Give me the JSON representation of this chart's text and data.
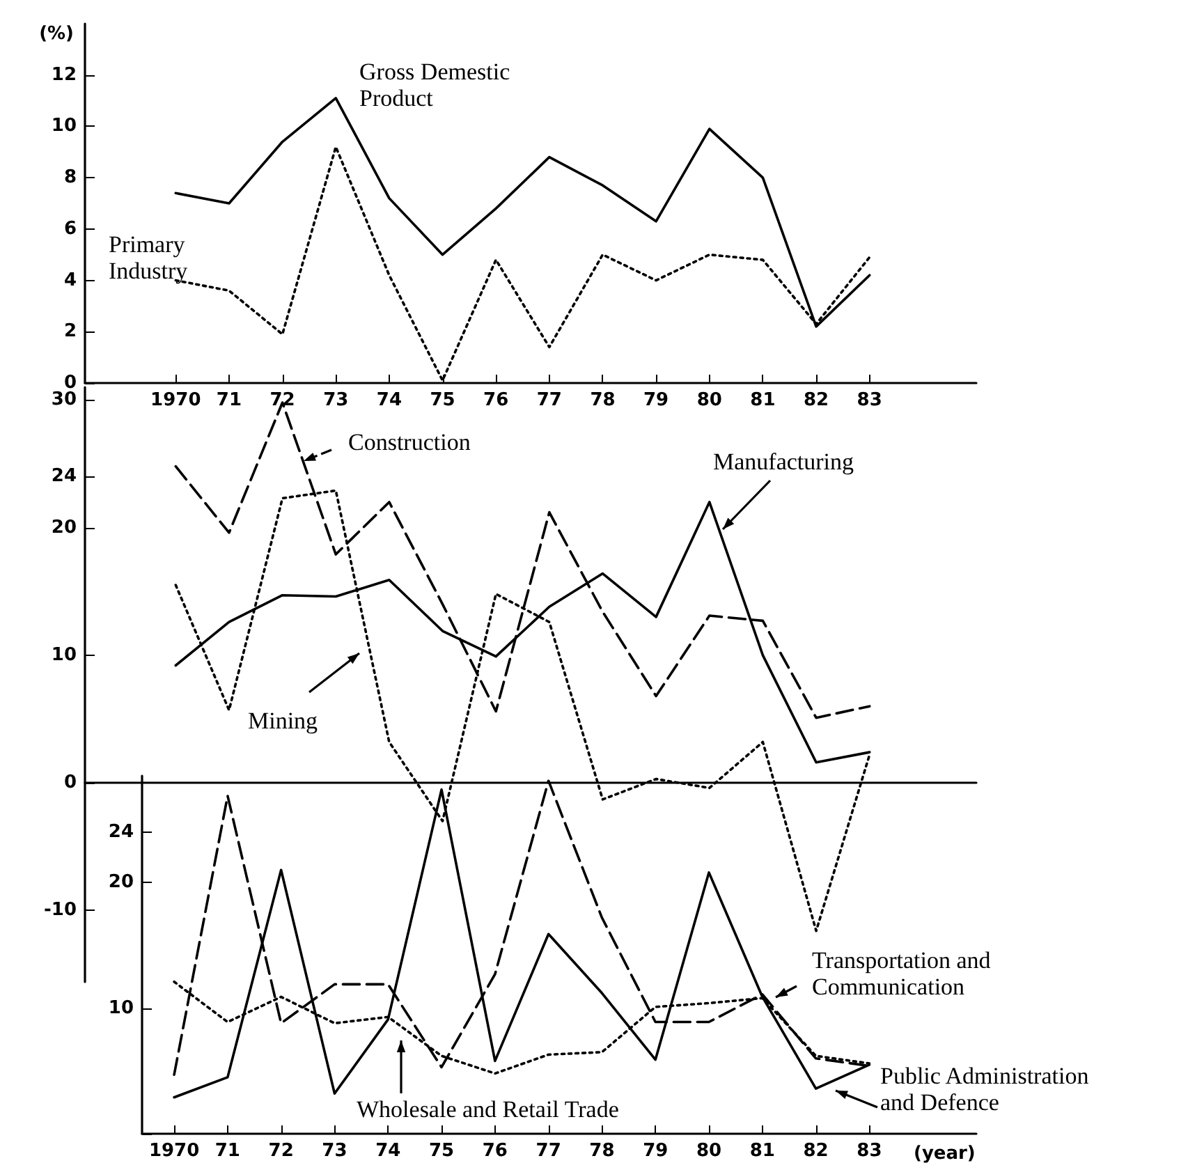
{
  "chart_data": [
    {
      "type": "line",
      "ylabel": "(%)",
      "x": [
        1970,
        1971,
        1972,
        1973,
        1974,
        1975,
        1976,
        1977,
        1978,
        1979,
        1980,
        1981,
        1982,
        1983
      ],
      "xlim": [
        1968.3,
        1985
      ],
      "xticks": [
        {
          "value": 1970,
          "label": "1970"
        },
        {
          "value": 1971,
          "label": "71"
        },
        {
          "value": 1972,
          "label": "72"
        },
        {
          "value": 1973,
          "label": "73"
        },
        {
          "value": 1974,
          "label": "74"
        },
        {
          "value": 1975,
          "label": "75"
        },
        {
          "value": 1976,
          "label": "76"
        },
        {
          "value": 1977,
          "label": "77"
        },
        {
          "value": 1978,
          "label": "78"
        },
        {
          "value": 1979,
          "label": "79"
        },
        {
          "value": 1980,
          "label": "80"
        },
        {
          "value": 1981,
          "label": "81"
        },
        {
          "value": 1982,
          "label": "82"
        },
        {
          "value": 1983,
          "label": "83"
        }
      ],
      "ylim": [
        0,
        14
      ],
      "yticks": [
        0,
        2,
        4,
        6,
        8,
        10,
        12
      ],
      "marker": "none",
      "series": [
        {
          "name": "Gross Demestic Product",
          "color": "#000000",
          "line_style": "solid",
          "values": [
            7.4,
            7.0,
            9.4,
            11.1,
            7.2,
            5.0,
            6.8,
            8.8,
            7.7,
            6.3,
            9.9,
            8.0,
            2.2,
            4.2
          ]
        },
        {
          "name": "Primary Industry",
          "color": "#000000",
          "line_style": "dotted",
          "values": [
            4.0,
            3.6,
            1.9,
            9.2,
            4.2,
            0.1,
            4.8,
            1.4,
            5.0,
            4.0,
            5.0,
            4.8,
            2.3,
            4.9
          ]
        }
      ]
    },
    {
      "type": "line",
      "x": [
        1970,
        1971,
        1972,
        1973,
        1974,
        1975,
        1976,
        1977,
        1978,
        1979,
        1980,
        1981,
        1982,
        1983
      ],
      "xlim": [
        1968.3,
        1985
      ],
      "ylim": [
        -15.6,
        31
      ],
      "yticks": [
        -10,
        0,
        10,
        20,
        24,
        30
      ],
      "tick_labels": "y",
      "marker": "none",
      "series": [
        {
          "name": "Construction",
          "color": "#000000",
          "line_style": "dashed",
          "values": [
            24.8,
            19.6,
            29.8,
            17.9,
            22.0,
            14,
            5.6,
            21.2,
            13.4,
            6.8,
            13.1,
            12.7,
            5.1,
            6.0
          ]
        },
        {
          "name": "Manufacturing",
          "color": "#000000",
          "line_style": "solid",
          "values": [
            9.2,
            12.6,
            14.7,
            14.6,
            15.9,
            11.9,
            9.9,
            13.8,
            16.4,
            13.0,
            22.0,
            10.0,
            1.6,
            2.4
          ]
        },
        {
          "name": "Mining",
          "color": "#000000",
          "line_style": "dotted",
          "values": [
            15.5,
            5.7,
            22.3,
            22.9,
            3.2,
            -3.0,
            14.8,
            12.6,
            -1.3,
            0.3,
            -0.4,
            3.2,
            -11.6,
            2.2
          ]
        }
      ]
    },
    {
      "type": "line",
      "xlabel": "(year)",
      "x": [
        1970,
        1971,
        1972,
        1973,
        1974,
        1975,
        1976,
        1977,
        1978,
        1979,
        1980,
        1981,
        1982,
        1983
      ],
      "xlim": [
        1969.4,
        1985
      ],
      "xticks": [
        {
          "value": 1970,
          "label": "1970"
        },
        {
          "value": 1971,
          "label": "71"
        },
        {
          "value": 1972,
          "label": "72"
        },
        {
          "value": 1973,
          "label": "73"
        },
        {
          "value": 1974,
          "label": "74"
        },
        {
          "value": 1975,
          "label": "75"
        },
        {
          "value": 1976,
          "label": "76"
        },
        {
          "value": 1977,
          "label": "77"
        },
        {
          "value": 1978,
          "label": "78"
        },
        {
          "value": 1979,
          "label": "79"
        },
        {
          "value": 1980,
          "label": "80"
        },
        {
          "value": 1981,
          "label": "81"
        },
        {
          "value": 1982,
          "label": "82"
        },
        {
          "value": 1983,
          "label": "83"
        }
      ],
      "ylim": [
        0,
        28.5
      ],
      "yticks": [
        {
          "value": 0,
          "label": null
        },
        10,
        20,
        24
      ],
      "marker": "none",
      "series": [
        {
          "name": "Transportation and Communication",
          "color": "#000000",
          "line_style": "dashed",
          "values": [
            4.7,
            26.9,
            8.8,
            11.9,
            11.9,
            5.3,
            12.7,
            28.1,
            17.2,
            8.9,
            8.9,
            11.1,
            6.0,
            5.4
          ]
        },
        {
          "name": "Public Administration and Defence",
          "color": "#000000",
          "line_style": "solid",
          "values": [
            2.9,
            4.5,
            21.0,
            3.2,
            9.1,
            27.4,
            5.8,
            15.9,
            11.2,
            5.9,
            20.8,
            10.9,
            3.6,
            5.5
          ]
        },
        {
          "name": "Wholesale and Retail Trade",
          "color": "#000000",
          "line_style": "dotted",
          "values": [
            12.1,
            8.9,
            10.9,
            8.8,
            9.3,
            6.2,
            4.8,
            6.3,
            6.5,
            10.1,
            10.4,
            10.8,
            6.2,
            5.6
          ]
        }
      ]
    }
  ]
}
